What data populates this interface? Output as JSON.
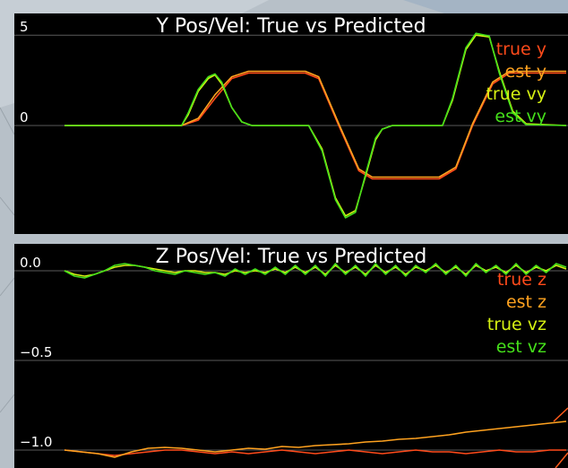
{
  "colors": {
    "panel_bg": "#000000",
    "gridline": "#5a5a5a",
    "text": "#ffffff",
    "true_pos": "#ff4a1a",
    "est_pos": "#ffa21f",
    "true_vel": "#d6f212",
    "est_vel": "#45e01a"
  },
  "chart_data": [
    {
      "type": "line",
      "title": "Y Pos/Vel: True vs Predicted",
      "ylim": [
        -6,
        6.2
      ],
      "xlim": [
        0,
        15
      ],
      "y_ticks": [
        {
          "value": 5,
          "label": "5"
        },
        {
          "value": 0,
          "label": "0"
        }
      ],
      "grid": true,
      "legend_placement": "top-right",
      "legend": [
        {
          "name": "true y",
          "color": "#ff4a1a"
        },
        {
          "name": "est y",
          "color": "#ffa21f"
        },
        {
          "name": "true vy",
          "color": "#d6f212"
        },
        {
          "name": "est vy",
          "color": "#45e01a"
        }
      ],
      "series": [
        {
          "name": "true y",
          "color": "#ff4a1a",
          "points": [
            [
              0,
              0
            ],
            [
              3.5,
              0
            ],
            [
              4.0,
              0.3
            ],
            [
              4.5,
              1.5
            ],
            [
              5.0,
              2.6
            ],
            [
              5.5,
              2.9
            ],
            [
              7.2,
              2.9
            ],
            [
              7.6,
              2.6
            ],
            [
              8.2,
              0
            ],
            [
              8.8,
              -2.5
            ],
            [
              9.2,
              -2.95
            ],
            [
              11.2,
              -2.95
            ],
            [
              11.7,
              -2.4
            ],
            [
              12.2,
              0
            ],
            [
              12.8,
              2.3
            ],
            [
              13.3,
              2.9
            ],
            [
              15,
              2.9
            ]
          ]
        },
        {
          "name": "est y",
          "color": "#ffa21f",
          "points": [
            [
              0,
              0
            ],
            [
              3.5,
              0
            ],
            [
              4.0,
              0.4
            ],
            [
              4.5,
              1.7
            ],
            [
              5.0,
              2.7
            ],
            [
              5.5,
              3.0
            ],
            [
              7.2,
              3.0
            ],
            [
              7.6,
              2.7
            ],
            [
              8.2,
              0.1
            ],
            [
              8.8,
              -2.4
            ],
            [
              9.2,
              -2.85
            ],
            [
              11.2,
              -2.85
            ],
            [
              11.7,
              -2.3
            ],
            [
              12.2,
              0.1
            ],
            [
              12.8,
              2.4
            ],
            [
              13.3,
              3.0
            ],
            [
              15,
              3.0
            ]
          ]
        },
        {
          "name": "true vy",
          "color": "#d6f212",
          "points": [
            [
              0,
              0
            ],
            [
              3.5,
              0
            ],
            [
              3.7,
              0.6
            ],
            [
              4.0,
              1.9
            ],
            [
              4.3,
              2.6
            ],
            [
              4.5,
              2.8
            ],
            [
              4.7,
              2.3
            ],
            [
              5.0,
              1.0
            ],
            [
              5.3,
              0.2
            ],
            [
              5.6,
              0
            ],
            [
              7.3,
              0
            ],
            [
              7.7,
              -1.3
            ],
            [
              8.1,
              -4.0
            ],
            [
              8.4,
              -5.0
            ],
            [
              8.7,
              -4.7
            ],
            [
              9.0,
              -2.8
            ],
            [
              9.3,
              -0.8
            ],
            [
              9.5,
              -0.2
            ],
            [
              9.8,
              0
            ],
            [
              11.3,
              0
            ],
            [
              11.6,
              1.4
            ],
            [
              12.0,
              4.2
            ],
            [
              12.3,
              5.0
            ],
            [
              12.7,
              4.9
            ],
            [
              13.0,
              3.0
            ],
            [
              13.4,
              0.8
            ],
            [
              13.8,
              0.1
            ],
            [
              15,
              0
            ]
          ]
        },
        {
          "name": "est vy",
          "color": "#45e01a",
          "points": [
            [
              0,
              0
            ],
            [
              3.5,
              0
            ],
            [
              3.7,
              0.7
            ],
            [
              4.0,
              2.0
            ],
            [
              4.3,
              2.7
            ],
            [
              4.5,
              2.85
            ],
            [
              4.7,
              2.4
            ],
            [
              5.0,
              1.0
            ],
            [
              5.3,
              0.2
            ],
            [
              5.6,
              0
            ],
            [
              7.3,
              0
            ],
            [
              7.7,
              -1.4
            ],
            [
              8.1,
              -4.1
            ],
            [
              8.4,
              -5.1
            ],
            [
              8.7,
              -4.8
            ],
            [
              9.0,
              -2.7
            ],
            [
              9.3,
              -0.7
            ],
            [
              9.5,
              -0.2
            ],
            [
              9.8,
              0
            ],
            [
              11.3,
              0
            ],
            [
              11.6,
              1.5
            ],
            [
              12.0,
              4.3
            ],
            [
              12.3,
              5.1
            ],
            [
              12.7,
              4.95
            ],
            [
              13.0,
              2.9
            ],
            [
              13.4,
              0.7
            ],
            [
              13.8,
              0.05
            ],
            [
              15,
              0
            ]
          ]
        }
      ]
    },
    {
      "type": "line",
      "title": "Z Pos/Vel: True vs Predicted",
      "ylim": [
        -1.1,
        0.15
      ],
      "xlim": [
        0,
        15
      ],
      "y_ticks": [
        {
          "value": 0.0,
          "label": "0.0"
        },
        {
          "value": -0.5,
          "label": "−0.5"
        },
        {
          "value": -1.0,
          "label": "−1.0"
        }
      ],
      "grid": true,
      "legend_placement": "top-right",
      "legend": [
        {
          "name": "true z",
          "color": "#ff4a1a"
        },
        {
          "name": "est z",
          "color": "#ffa21f"
        },
        {
          "name": "true vz",
          "color": "#d6f212"
        },
        {
          "name": "est vz",
          "color": "#45e01a"
        }
      ],
      "series": [
        {
          "name": "true z",
          "color": "#ff4a1a",
          "points": [
            [
              0,
              -1.0
            ],
            [
              0.5,
              -1.01
            ],
            [
              1.0,
              -1.02
            ],
            [
              1.5,
              -1.03
            ],
            [
              2.0,
              -1.02
            ],
            [
              2.5,
              -1.01
            ],
            [
              3.0,
              -1.0
            ],
            [
              3.5,
              -1.0
            ],
            [
              4.0,
              -1.01
            ],
            [
              4.5,
              -1.02
            ],
            [
              5.0,
              -1.01
            ],
            [
              5.5,
              -1.02
            ],
            [
              6.0,
              -1.01
            ],
            [
              6.5,
              -1.0
            ],
            [
              7.0,
              -1.01
            ],
            [
              7.5,
              -1.02
            ],
            [
              8.0,
              -1.01
            ],
            [
              8.5,
              -1.0
            ],
            [
              9.0,
              -1.01
            ],
            [
              9.5,
              -1.02
            ],
            [
              10.0,
              -1.01
            ],
            [
              10.5,
              -1.0
            ],
            [
              11.0,
              -1.01
            ],
            [
              11.5,
              -1.01
            ],
            [
              12.0,
              -1.02
            ],
            [
              12.5,
              -1.01
            ],
            [
              13.0,
              -1.0
            ],
            [
              13.5,
              -1.01
            ],
            [
              14.0,
              -1.01
            ],
            [
              14.5,
              -1.0
            ],
            [
              15.0,
              -1.0
            ]
          ]
        },
        {
          "name": "est z",
          "color": "#ffa21f",
          "points": [
            [
              0,
              -1.0
            ],
            [
              0.5,
              -1.01
            ],
            [
              1.0,
              -1.02
            ],
            [
              1.5,
              -1.04
            ],
            [
              2.0,
              -1.01
            ],
            [
              2.5,
              -0.99
            ],
            [
              3.0,
              -0.985
            ],
            [
              3.5,
              -0.99
            ],
            [
              4.0,
              -1.0
            ],
            [
              4.5,
              -1.01
            ],
            [
              5.0,
              -1.0
            ],
            [
              5.5,
              -0.99
            ],
            [
              6.0,
              -0.995
            ],
            [
              6.5,
              -0.98
            ],
            [
              7.0,
              -0.985
            ],
            [
              7.5,
              -0.975
            ],
            [
              8.0,
              -0.97
            ],
            [
              8.5,
              -0.965
            ],
            [
              9.0,
              -0.955
            ],
            [
              9.5,
              -0.95
            ],
            [
              10.0,
              -0.94
            ],
            [
              10.5,
              -0.935
            ],
            [
              11.0,
              -0.925
            ],
            [
              11.5,
              -0.915
            ],
            [
              12.0,
              -0.9
            ],
            [
              12.5,
              -0.89
            ],
            [
              13.0,
              -0.88
            ],
            [
              13.5,
              -0.87
            ],
            [
              14.0,
              -0.86
            ],
            [
              14.5,
              -0.85
            ],
            [
              15.0,
              -0.84
            ]
          ]
        },
        {
          "name": "true vz",
          "color": "#d6f212",
          "points": [
            [
              0,
              0.0
            ],
            [
              0.3,
              -0.02
            ],
            [
              0.6,
              -0.03
            ],
            [
              0.9,
              -0.02
            ],
            [
              1.2,
              0.0
            ],
            [
              1.5,
              0.02
            ],
            [
              1.8,
              0.03
            ],
            [
              2.1,
              0.03
            ],
            [
              2.4,
              0.02
            ],
            [
              2.7,
              0.01
            ],
            [
              3.0,
              0.0
            ],
            [
              3.3,
              -0.01
            ],
            [
              3.6,
              0.0
            ],
            [
              3.9,
              0.0
            ],
            [
              4.2,
              -0.01
            ],
            [
              4.5,
              -0.01
            ],
            [
              4.8,
              -0.02
            ],
            [
              5.1,
              0.0
            ],
            [
              5.4,
              -0.01
            ],
            [
              5.7,
              0.0
            ],
            [
              6.0,
              -0.01
            ],
            [
              6.3,
              0.01
            ],
            [
              6.6,
              -0.01
            ],
            [
              6.9,
              0.02
            ],
            [
              7.2,
              -0.01
            ],
            [
              7.5,
              0.02
            ],
            [
              7.8,
              -0.02
            ],
            [
              8.1,
              0.03
            ],
            [
              8.4,
              -0.01
            ],
            [
              8.7,
              0.02
            ],
            [
              9.0,
              -0.02
            ],
            [
              9.3,
              0.03
            ],
            [
              9.6,
              -0.01
            ],
            [
              9.9,
              0.02
            ],
            [
              10.2,
              -0.02
            ],
            [
              10.5,
              0.02
            ],
            [
              10.8,
              0.0
            ],
            [
              11.1,
              0.03
            ],
            [
              11.4,
              -0.01
            ],
            [
              11.7,
              0.02
            ],
            [
              12.0,
              -0.02
            ],
            [
              12.3,
              0.03
            ],
            [
              12.6,
              0.0
            ],
            [
              12.9,
              0.02
            ],
            [
              13.2,
              -0.01
            ],
            [
              13.5,
              0.03
            ],
            [
              13.8,
              -0.01
            ],
            [
              14.1,
              0.02
            ],
            [
              14.4,
              0.0
            ],
            [
              14.7,
              0.03
            ],
            [
              15.0,
              0.01
            ]
          ]
        },
        {
          "name": "est vz",
          "color": "#45e01a",
          "points": [
            [
              0,
              0.0
            ],
            [
              0.3,
              -0.03
            ],
            [
              0.6,
              -0.04
            ],
            [
              0.9,
              -0.02
            ],
            [
              1.2,
              0.0
            ],
            [
              1.5,
              0.03
            ],
            [
              1.8,
              0.04
            ],
            [
              2.1,
              0.03
            ],
            [
              2.4,
              0.02
            ],
            [
              2.7,
              0.0
            ],
            [
              3.0,
              -0.01
            ],
            [
              3.3,
              -0.02
            ],
            [
              3.6,
              0.0
            ],
            [
              3.9,
              -0.01
            ],
            [
              4.2,
              -0.02
            ],
            [
              4.5,
              -0.01
            ],
            [
              4.8,
              -0.03
            ],
            [
              5.1,
              0.01
            ],
            [
              5.4,
              -0.02
            ],
            [
              5.7,
              0.01
            ],
            [
              6.0,
              -0.02
            ],
            [
              6.3,
              0.02
            ],
            [
              6.6,
              -0.02
            ],
            [
              6.9,
              0.03
            ],
            [
              7.2,
              -0.02
            ],
            [
              7.5,
              0.03
            ],
            [
              7.8,
              -0.03
            ],
            [
              8.1,
              0.04
            ],
            [
              8.4,
              -0.02
            ],
            [
              8.7,
              0.03
            ],
            [
              9.0,
              -0.03
            ],
            [
              9.3,
              0.04
            ],
            [
              9.6,
              -0.02
            ],
            [
              9.9,
              0.03
            ],
            [
              10.2,
              -0.03
            ],
            [
              10.5,
              0.03
            ],
            [
              10.8,
              -0.01
            ],
            [
              11.1,
              0.04
            ],
            [
              11.4,
              -0.02
            ],
            [
              11.7,
              0.03
            ],
            [
              12.0,
              -0.03
            ],
            [
              12.3,
              0.04
            ],
            [
              12.6,
              -0.01
            ],
            [
              12.9,
              0.03
            ],
            [
              13.2,
              -0.02
            ],
            [
              13.5,
              0.04
            ],
            [
              13.8,
              -0.02
            ],
            [
              14.1,
              0.03
            ],
            [
              14.4,
              -0.01
            ],
            [
              14.7,
              0.04
            ],
            [
              15.0,
              0.02
            ]
          ]
        }
      ]
    }
  ]
}
